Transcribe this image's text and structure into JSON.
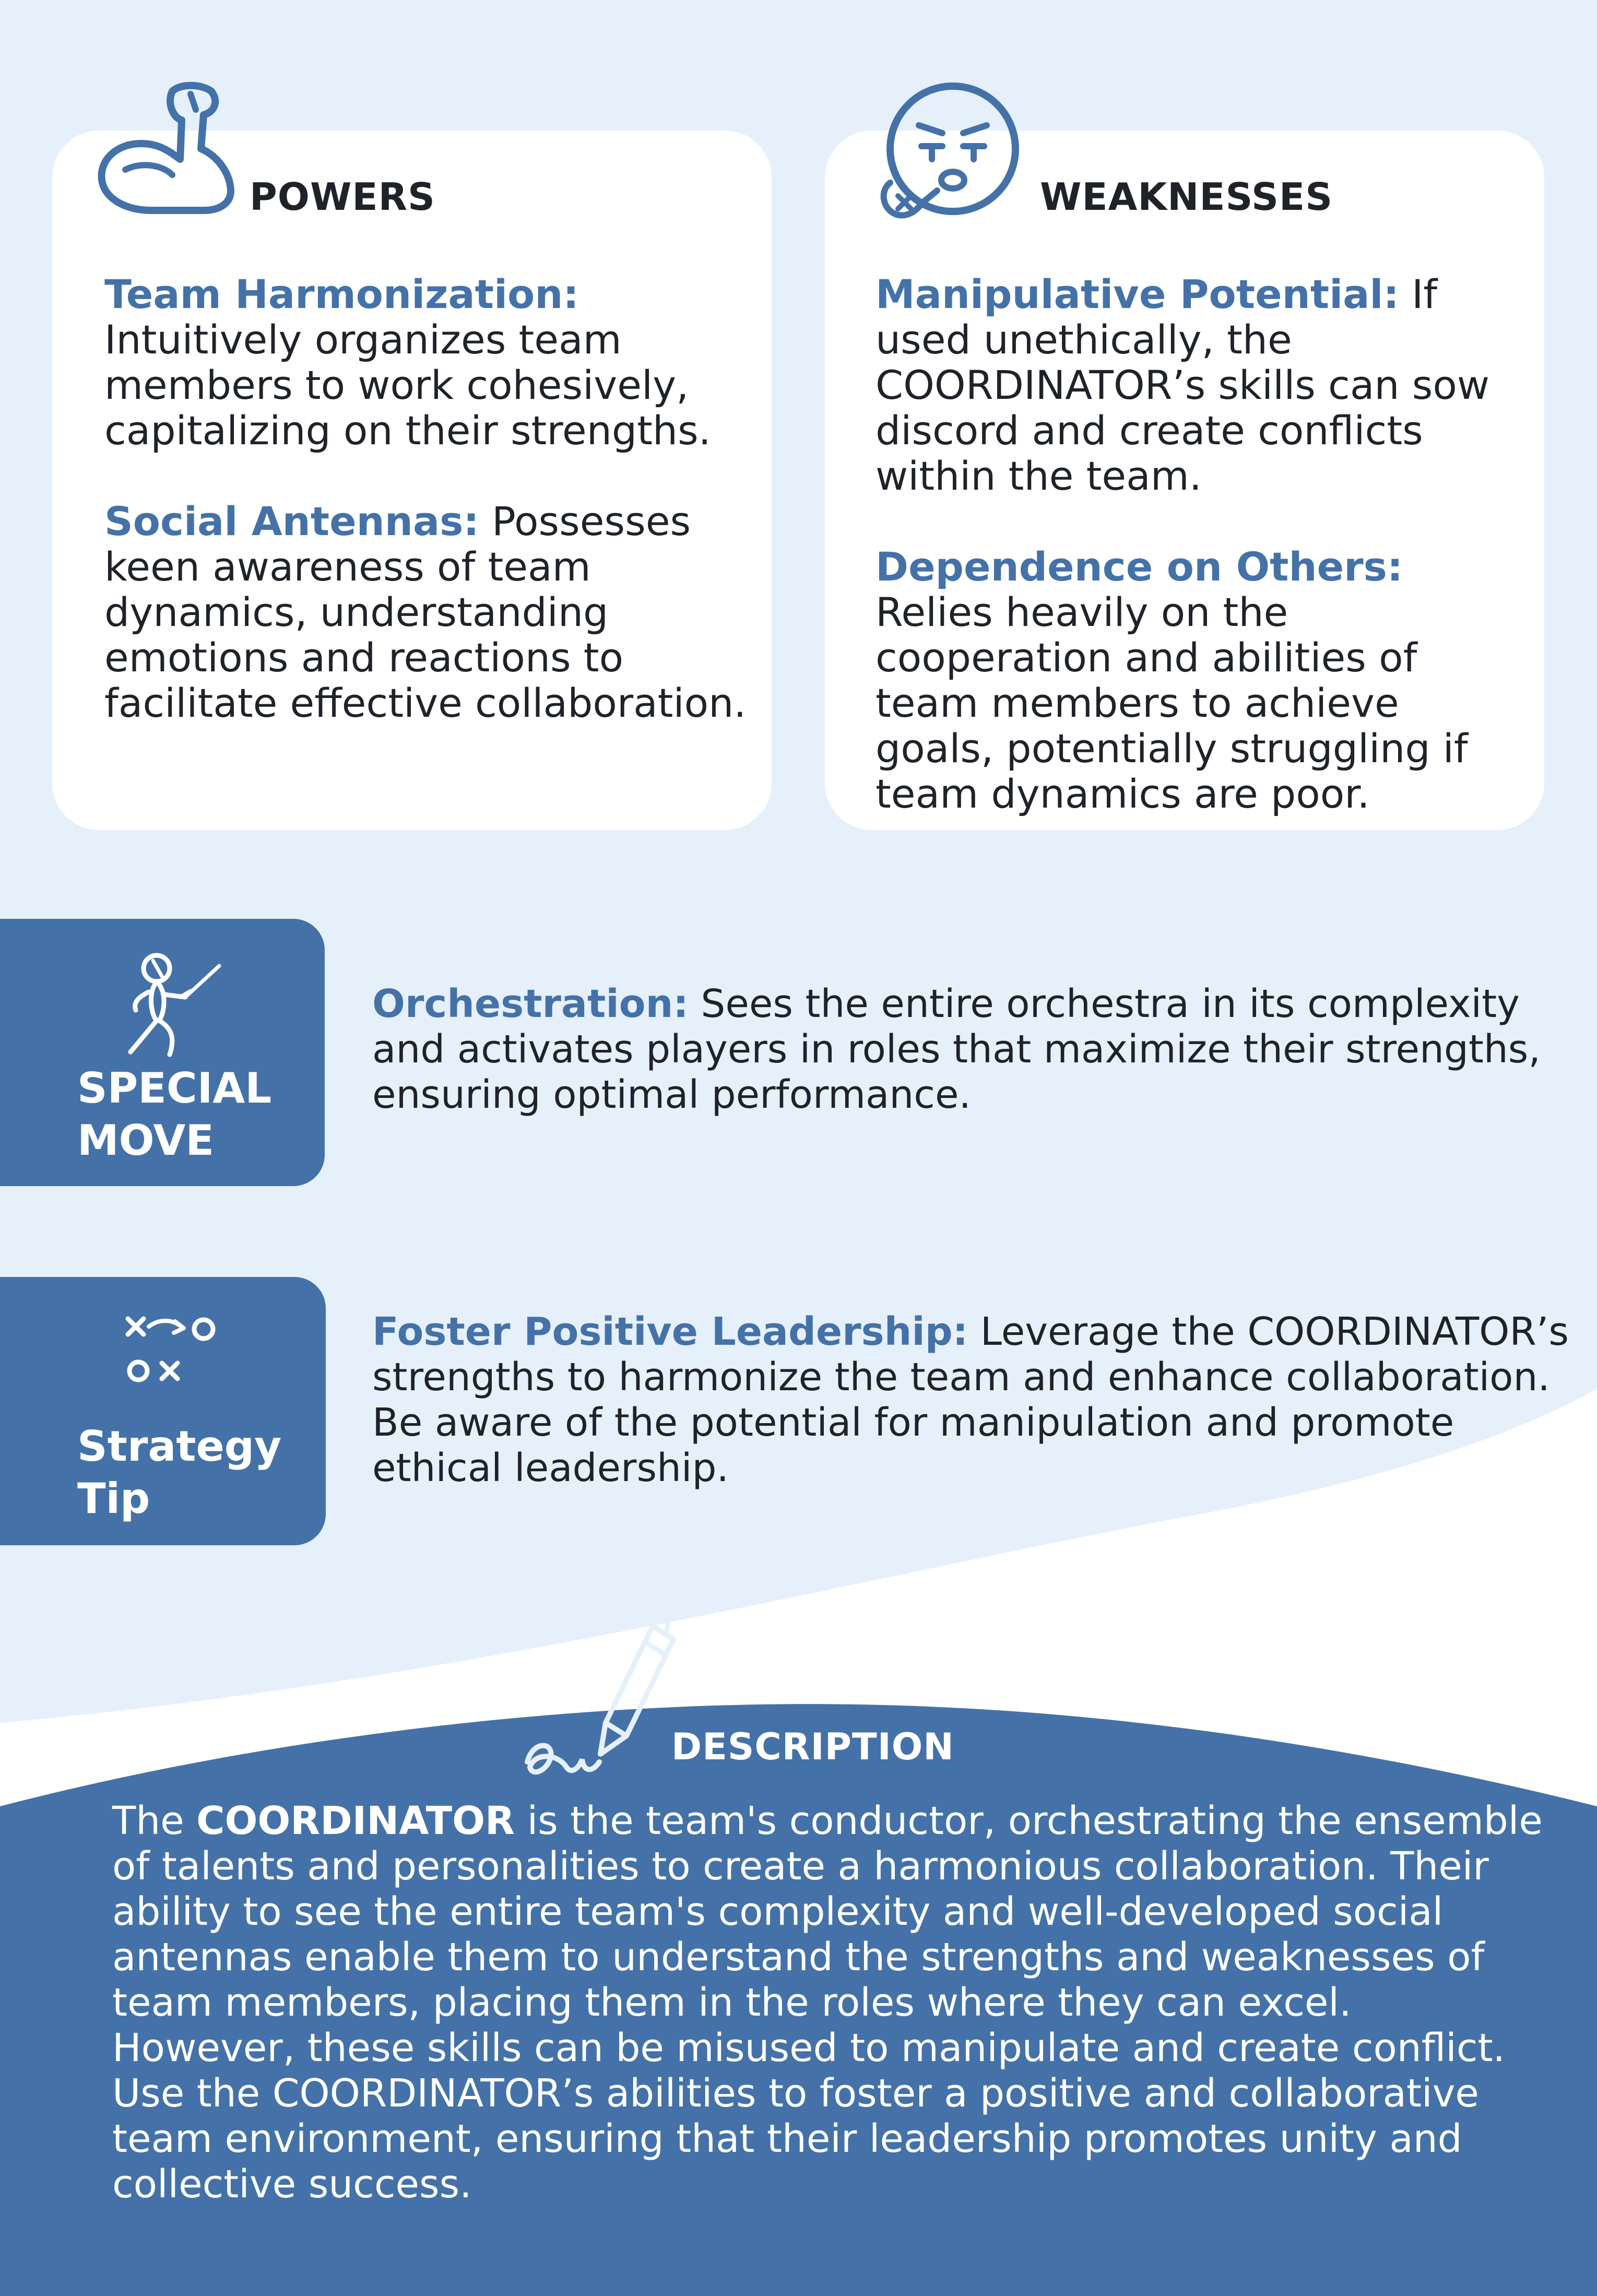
{
  "powers": {
    "title": "POWERS",
    "icon": "flexed-arm-icon",
    "items": [
      {
        "label": "Team Harmonization:",
        "text": " Intuitively organizes team members to work cohesively, capitalizing on their strengths."
      },
      {
        "label": "Social Antennas:",
        "text": " Possesses keen awareness of team dynamics, understanding emotions and reactions to facilitate effective collaboration."
      }
    ]
  },
  "weaknesses": {
    "title": "WEAKNESSES",
    "icon": "anxious-face-icon",
    "items": [
      {
        "label": "Manipulative Potential:",
        "text": " If used unethically, the COORDINATOR’s skills can sow discord and create conflicts within the team."
      },
      {
        "label": "Dependence on Others:",
        "text": " Relies heavily on the cooperation and abilities of team members to achieve goals, potentially struggling if team dynamics are poor."
      }
    ]
  },
  "special_move": {
    "label_line1": "SPECIAL",
    "label_line2": "MOVE",
    "icon": "fencer-icon",
    "title": "Orchestration:",
    "text": " Sees the entire orchestra in its complexity and activates players in roles that maximize their strengths, ensuring optimal performance."
  },
  "strategy_tip": {
    "label_line1": "Strategy",
    "label_line2": "Tip",
    "icon": "game-plan-icon",
    "title": "Foster Positive Leadership:",
    "text": " Leverage the COORDINATOR’s strengths to harmonize the team and enhance collaboration. Be aware of the potential for manipulation and promote ethical leadership."
  },
  "description": {
    "title": "DESCRIPTION",
    "icon": "pen-signature-icon",
    "text_before": "The ",
    "highlight": "COORDINATOR",
    "text_after": " is the team's conductor, orchestrating the ensemble of talents and personalities to create a harmonious collaboration. Their ability to see the entire team's complexity and well-developed social antennas enable them to understand the strengths and weaknesses of team members, placing them in the roles where they can excel. However, these skills can be misused to manipulate and create conflict. Use the COORDINATOR’s abilities to foster a positive and collaborative team environment, ensuring that their leadership promotes unity and collective success."
  },
  "colors": {
    "background": "#e6f0fb",
    "accent": "#4472a8",
    "card": "#ffffff",
    "text": "#1f2329"
  }
}
